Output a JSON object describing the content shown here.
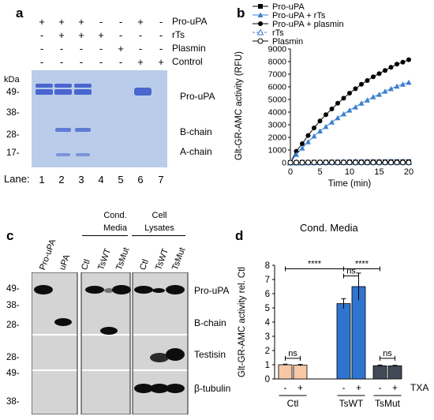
{
  "panel_a": {
    "letter": "a",
    "rows": [
      {
        "label": "Pro-uPA",
        "signs": [
          "+",
          "+",
          "+",
          "-",
          "-",
          "+",
          "-"
        ]
      },
      {
        "label": "rTs",
        "signs": [
          "-",
          "+",
          "+",
          "+",
          "-",
          "-",
          "-"
        ]
      },
      {
        "label": "Plasmin",
        "signs": [
          "-",
          "-",
          "-",
          "-",
          "+",
          "-",
          "-"
        ]
      },
      {
        "label": "Control",
        "signs": [
          "-",
          "-",
          "-",
          "-",
          "-",
          "+",
          "+"
        ]
      }
    ],
    "kda_label": "kDa",
    "markers": [
      "49-",
      "38-",
      "28-",
      "17-"
    ],
    "band_labels": [
      "Pro-uPA",
      "B-chain",
      "A-chain"
    ],
    "lane_label": "Lane:",
    "lane_numbers": [
      "1",
      "2",
      "3",
      "4",
      "5",
      "6",
      "7"
    ],
    "gel_color": "#b9cdea",
    "band_color": "#4a66cf"
  },
  "panel_b": {
    "letter": "b",
    "legend": [
      {
        "label": "Pro-uPA"
      },
      {
        "label": "Pro-uPA + rTs"
      },
      {
        "label": "Pro-uPA + plasmin"
      },
      {
        "label": "rTs"
      },
      {
        "label": "Plasmin"
      }
    ],
    "chart_data": {
      "type": "line",
      "xlabel": "Time (min)",
      "ylabel": "Glt-GR-AMC activity (RFU)",
      "xlim": [
        0,
        20
      ],
      "ylim": [
        0,
        9000
      ],
      "xticks": [
        "0",
        "5",
        "10",
        "15",
        "20"
      ],
      "yticks": [
        "0",
        "1000",
        "2000",
        "3000",
        "4000",
        "5000",
        "6000",
        "7000",
        "8000",
        "9000"
      ],
      "x": [
        0,
        1,
        2,
        3,
        4,
        5,
        6,
        7,
        8,
        9,
        10,
        11,
        12,
        13,
        14,
        15,
        16,
        17,
        18,
        19,
        20
      ],
      "series": [
        {
          "name": "Pro-uPA + plasmin",
          "color": "#000000",
          "marker": "circle-filled",
          "values": [
            0,
            900,
            1500,
            2150,
            2750,
            3300,
            3800,
            4250,
            4700,
            5100,
            5500,
            5850,
            6200,
            6500,
            6800,
            7050,
            7300,
            7550,
            7800,
            7950,
            8150
          ]
        },
        {
          "name": "Pro-uPA + rTs",
          "color": "#3a7fd0",
          "marker": "triangle-filled",
          "values": [
            0,
            650,
            1150,
            1650,
            2100,
            2500,
            2850,
            3200,
            3550,
            3850,
            4150,
            4400,
            4700,
            4950,
            5200,
            5400,
            5650,
            5850,
            6050,
            6200,
            6350
          ]
        },
        {
          "name": "Pro-uPA",
          "color": "#000000",
          "marker": "square-filled",
          "values": [
            0,
            10,
            20,
            20,
            30,
            30,
            30,
            40,
            40,
            40,
            50,
            50,
            50,
            60,
            60,
            60,
            60,
            70,
            70,
            70,
            70
          ]
        },
        {
          "name": "rTs",
          "color": "#3a7fd0",
          "marker": "triangle-open",
          "values": [
            0,
            10,
            10,
            20,
            20,
            20,
            30,
            30,
            30,
            30,
            40,
            40,
            40,
            40,
            40,
            50,
            50,
            50,
            50,
            50,
            50
          ]
        },
        {
          "name": "Plasmin",
          "color": "#000000",
          "marker": "circle-open",
          "values": [
            0,
            0,
            0,
            10,
            10,
            10,
            10,
            10,
            10,
            10,
            10,
            10,
            10,
            10,
            10,
            10,
            10,
            10,
            10,
            10,
            10
          ]
        }
      ]
    }
  },
  "panel_c": {
    "letter": "c",
    "group_labels": [
      {
        "lines": [
          "Cond.",
          "Media"
        ]
      },
      {
        "lines": [
          "Cell",
          "Lysates"
        ]
      }
    ],
    "lane_labels": [
      "Pro-uPA",
      "uPA",
      "Ctl",
      "TsWT",
      "TsMut",
      "Ctl",
      "TsWT",
      "TsMut"
    ],
    "markers": [
      "49-",
      "38-",
      "28-",
      "28-",
      "49-",
      "38-"
    ],
    "band_labels": [
      "Pro-uPA",
      "B-chain",
      "Testisin",
      "β-tubulin"
    ]
  },
  "panel_d": {
    "letter": "d",
    "title": "Cond. Media",
    "chart_data": {
      "type": "bar",
      "ylabel": "Glt-GR-AMC activity rel. Ctl",
      "ylim": [
        0,
        8
      ],
      "yticks": [
        "0",
        "1",
        "2",
        "3",
        "4",
        "5",
        "6",
        "7",
        "8"
      ],
      "groups": [
        "Ctl",
        "TsWT",
        "TsMut"
      ],
      "txa_label": "TXA",
      "txa_signs": [
        "-",
        "+",
        "-",
        "+",
        "-",
        "+"
      ],
      "bars": [
        {
          "group": "Ctl",
          "txa": "-",
          "value": 1.0,
          "error": 0.04,
          "color": "#f8c8a6"
        },
        {
          "group": "Ctl",
          "txa": "+",
          "value": 0.97,
          "error": 0.05,
          "color": "#f8c8a6"
        },
        {
          "group": "TsWT",
          "txa": "-",
          "value": 5.3,
          "error": 0.35,
          "color": "#2f74cf"
        },
        {
          "group": "TsWT",
          "txa": "+",
          "value": 6.5,
          "error": 0.95,
          "color": "#2f74cf"
        },
        {
          "group": "TsMut",
          "txa": "-",
          "value": 0.93,
          "error": 0.05,
          "color": "#434a57"
        },
        {
          "group": "TsMut",
          "txa": "+",
          "value": 0.92,
          "error": 0.04,
          "color": "#434a57"
        }
      ],
      "significance": [
        "ns",
        "****",
        "ns",
        "****",
        "ns"
      ]
    }
  }
}
